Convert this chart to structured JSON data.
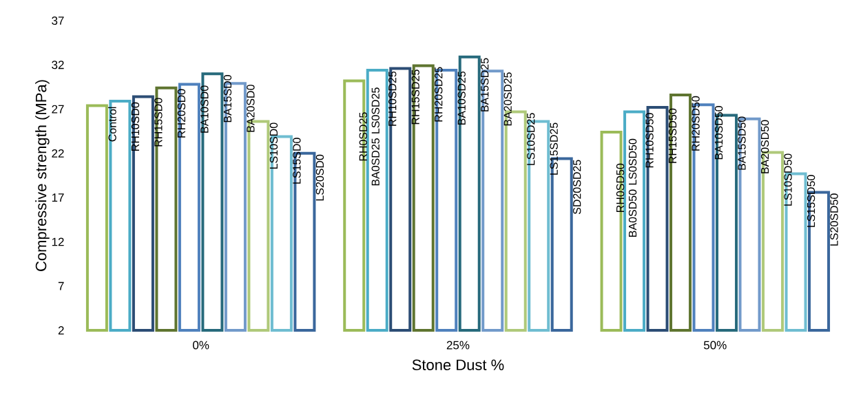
{
  "chart_data": {
    "type": "bar",
    "xlabel": "Stone Dust %",
    "ylabel": "Compressive strength (MPa)",
    "categories": [
      "0%",
      "25%",
      "50%"
    ],
    "ylim": [
      2,
      37
    ],
    "yticks": [
      2,
      7,
      12,
      17,
      22,
      27,
      32,
      37
    ],
    "series": [
      {
        "color": "#9bbb59",
        "values": [
          27.4,
          30.2,
          24.4
        ],
        "value_labels": [
          "Control",
          "RH0SD25 BA0SD25 LS0SD25",
          "RH0SD50 BA0SD50 LS0SD50"
        ]
      },
      {
        "color": "#4bacc6",
        "values": [
          27.9,
          31.4,
          26.7
        ],
        "value_labels": [
          "RH10SD0",
          "RH10SD25",
          "RH10SD50"
        ]
      },
      {
        "color": "#2c4d75",
        "values": [
          28.4,
          31.6,
          27.2
        ],
        "value_labels": [
          "RH15SD0",
          "RH15SD25",
          "RH15SD50"
        ]
      },
      {
        "color": "#5f7530",
        "values": [
          29.4,
          31.9,
          28.6
        ],
        "value_labels": [
          "RH20SD0",
          "RH20SD25",
          "RH20SD50"
        ]
      },
      {
        "color": "#4f81bd",
        "values": [
          29.8,
          31.4,
          27.5
        ],
        "value_labels": [
          "BA10SD0",
          "BA10SD25",
          "BA10SD50"
        ]
      },
      {
        "color": "#276a7c",
        "values": [
          31.0,
          32.9,
          26.3
        ],
        "value_labels": [
          "BA15SD0",
          "BA15SD25",
          "BA15SD50"
        ]
      },
      {
        "color": "#729aca",
        "values": [
          29.9,
          31.3,
          25.9
        ],
        "value_labels": [
          "BA20SD0",
          "BA20SD25",
          "BA20SD50"
        ]
      },
      {
        "color": "#afc97a",
        "values": [
          25.6,
          26.7,
          22.1
        ],
        "value_labels": [
          "LS10SD0",
          "LS10SD25",
          "LS10SD50"
        ]
      },
      {
        "color": "#6fbdd1",
        "values": [
          23.9,
          25.6,
          19.7
        ],
        "value_labels": [
          "LS15SD0",
          "LS15SD25",
          "LS15SD50"
        ]
      },
      {
        "color": "#3a679c",
        "values": [
          22.0,
          21.4,
          17.6
        ],
        "value_labels": [
          "LS20SD0",
          "SD20SD25",
          "LS20SD50"
        ]
      }
    ]
  }
}
